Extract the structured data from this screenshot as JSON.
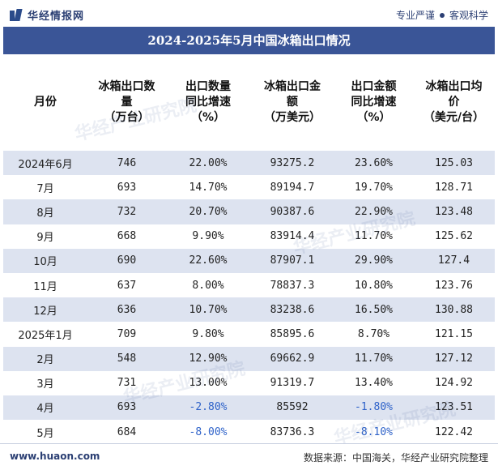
{
  "brand": {
    "name": "华经情报网",
    "slogan_1": "专业严谨",
    "slogan_2": "客观科学",
    "accent_color": "#3a5597"
  },
  "title": "2024-2025年5月中国冰箱出口情况",
  "table": {
    "headers": [
      "月份",
      "冰箱出口数量（万台）",
      "出口数量同比增速（%）",
      "冰箱出口金额（万美元）",
      "出口金额同比增速（%）",
      "冰箱出口均价（美元/台）"
    ],
    "header_lines": [
      [
        "月份"
      ],
      [
        "冰箱出口数",
        "量",
        "（万台）"
      ],
      [
        "出口数量",
        "同比增速",
        "（%）"
      ],
      [
        "冰箱出口金",
        "额",
        "（万美元）"
      ],
      [
        "出口金额",
        "同比增速",
        "（%）"
      ],
      [
        "冰箱出口均",
        "价",
        "（美元/台）"
      ]
    ],
    "rows": [
      [
        "2024年6月",
        "746",
        "22.00%",
        "93275.2",
        "23.60%",
        "125.03"
      ],
      [
        "7月",
        "693",
        "14.70%",
        "89194.7",
        "19.70%",
        "128.71"
      ],
      [
        "8月",
        "732",
        "20.70%",
        "90387.6",
        "22.90%",
        "123.48"
      ],
      [
        "9月",
        "668",
        "9.90%",
        "83914.4",
        "11.70%",
        "125.62"
      ],
      [
        "10月",
        "690",
        "22.60%",
        "87907.1",
        "29.90%",
        "127.4"
      ],
      [
        "11月",
        "637",
        "8.00%",
        "78837.3",
        "10.80%",
        "123.76"
      ],
      [
        "12月",
        "636",
        "10.70%",
        "83238.6",
        "16.50%",
        "130.88"
      ],
      [
        "2025年1月",
        "709",
        "9.80%",
        "85895.6",
        "8.70%",
        "121.15"
      ],
      [
        "2月",
        "548",
        "12.90%",
        "69662.9",
        "11.70%",
        "127.12"
      ],
      [
        "3月",
        "731",
        "13.00%",
        "91319.7",
        "13.40%",
        "124.92"
      ],
      [
        "4月",
        "693",
        "-2.80%",
        "85592",
        "-1.80%",
        "123.51"
      ],
      [
        "5月",
        "684",
        "-8.00%",
        "83736.3",
        "-8.10%",
        "122.42"
      ]
    ]
  },
  "watermark_text": "华经产业研究院",
  "footer": {
    "site": "www.huaon.com",
    "source": "数据来源：中国海关，华经产业研究院整理"
  }
}
